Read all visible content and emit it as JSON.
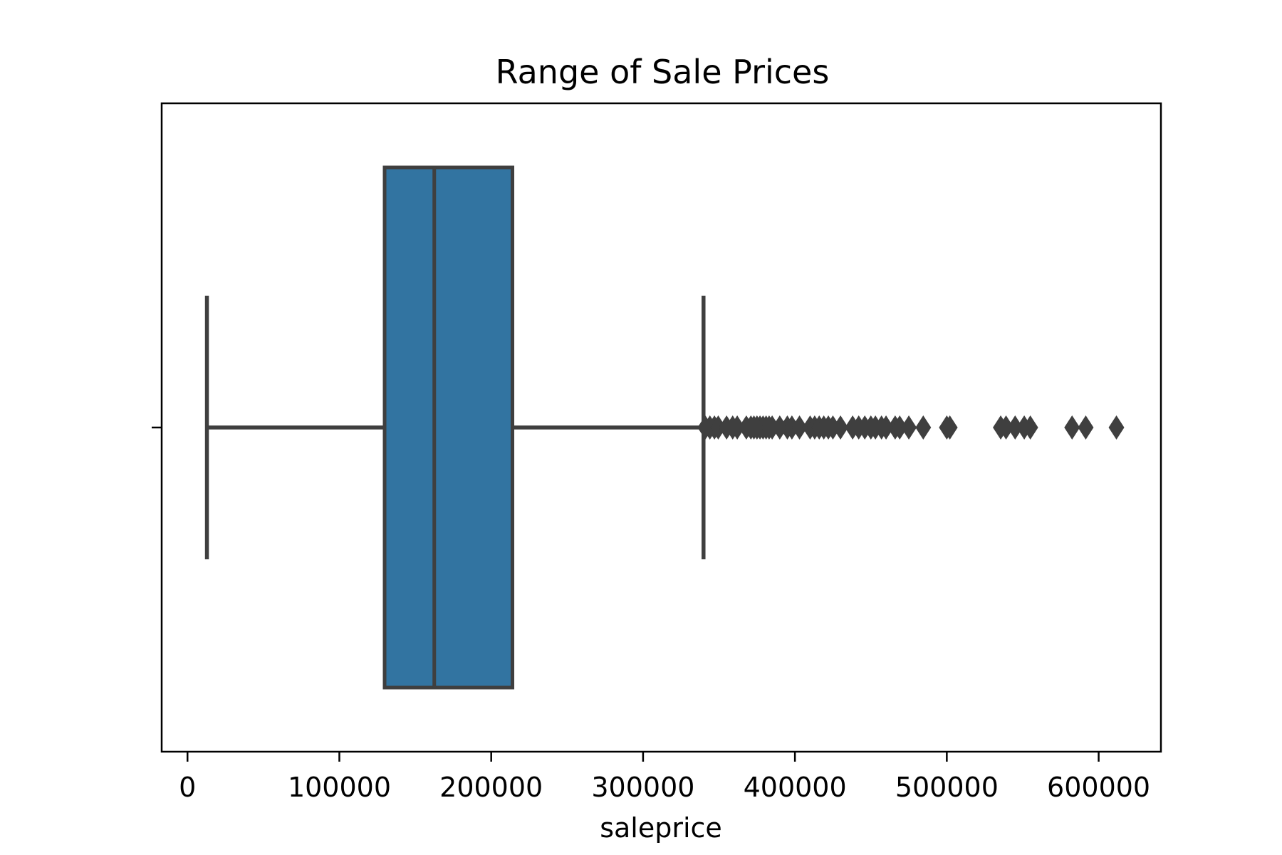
{
  "chart_data": {
    "type": "boxplot",
    "title": "Range of Sale Prices",
    "xlabel": "saleprice",
    "ylabel": "",
    "xlim": [
      -17000,
      641000
    ],
    "x_ticks": [
      0,
      100000,
      200000,
      300000,
      400000,
      500000,
      600000
    ],
    "x_tick_labels": [
      "0",
      "100000",
      "200000",
      "300000",
      "400000",
      "500000",
      "600000"
    ],
    "grid": false,
    "box": {
      "whisker_low": 12800,
      "q1": 129800,
      "median": 162500,
      "q3": 214000,
      "whisker_high": 339800
    },
    "outliers": [
      341000,
      344000,
      347000,
      349500,
      355000,
      359000,
      362000,
      368000,
      371000,
      373000,
      375000,
      377000,
      379000,
      381000,
      383000,
      385000,
      390000,
      395000,
      398000,
      403000,
      410000,
      413000,
      416000,
      419000,
      422000,
      425000,
      430000,
      438000,
      442000,
      446000,
      450000,
      453000,
      457000,
      460000,
      466000,
      469000,
      475000,
      484500,
      500000,
      502000,
      535500,
      539000,
      545000,
      551000,
      555000,
      582500,
      591500,
      611700
    ],
    "colors": {
      "box_fill": "#3274a1",
      "line": "#3f3f3f",
      "axes": "#000000"
    }
  }
}
